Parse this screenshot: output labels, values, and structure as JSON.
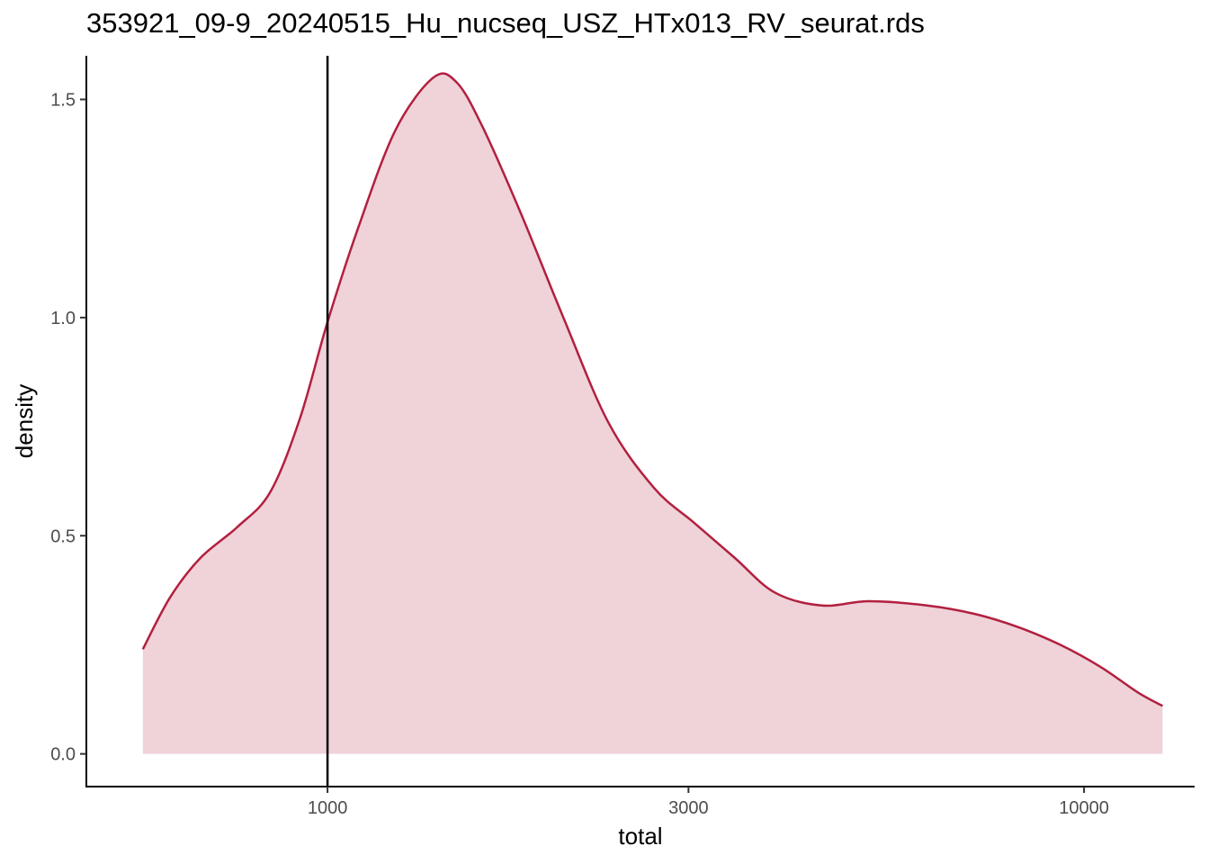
{
  "title": "353921_09-9_20240515_Hu_nucseq_USZ_HTx013_RV_seurat.rds",
  "chart_data": {
    "type": "area",
    "title": "353921_09-9_20240515_Hu_nucseq_USZ_HTx013_RV_seurat.rds",
    "xlabel": "total",
    "ylabel": "density",
    "x_scale": "log10",
    "xlim": [
      480,
      14000
    ],
    "ylim": [
      -0.075,
      1.6
    ],
    "x_ticks": [
      {
        "value": 1000,
        "label": "1000"
      },
      {
        "value": 3000,
        "label": "3000"
      },
      {
        "value": 10000,
        "label": "10000"
      }
    ],
    "y_ticks": [
      {
        "value": 0.0,
        "label": "0.0"
      },
      {
        "value": 0.5,
        "label": "0.5"
      },
      {
        "value": 1.0,
        "label": "1.0"
      },
      {
        "value": 1.5,
        "label": "1.5"
      }
    ],
    "vline": 1000,
    "grid": false,
    "legend": "none",
    "colors": {
      "line": "#b2203f",
      "fill": "#b2203f",
      "fill_opacity": 0.2,
      "vline": "#000000"
    },
    "series": [
      {
        "x": [
          570,
          620,
          680,
          760,
          840,
          920,
          1000,
          1100,
          1230,
          1380,
          1480,
          1600,
          1800,
          2050,
          2350,
          2700,
          3050,
          3450,
          3900,
          4500,
          5200,
          6200,
          7200,
          8200,
          9300,
          10500,
          11800,
          12700
        ],
        "y": [
          0.24,
          0.36,
          0.45,
          0.52,
          0.6,
          0.77,
          0.99,
          1.21,
          1.43,
          1.55,
          1.54,
          1.44,
          1.24,
          1.0,
          0.76,
          0.61,
          0.53,
          0.45,
          0.37,
          0.34,
          0.35,
          0.34,
          0.32,
          0.29,
          0.25,
          0.2,
          0.14,
          0.11
        ]
      }
    ]
  }
}
